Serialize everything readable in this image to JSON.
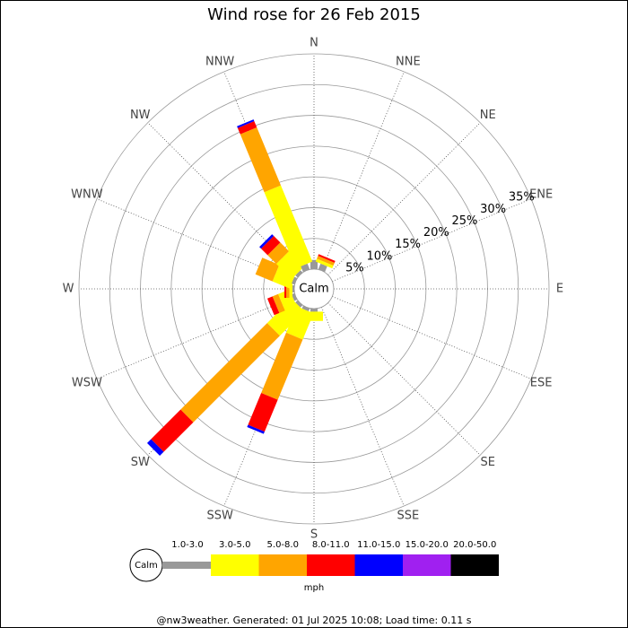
{
  "chart_data": {
    "type": "windrose",
    "title": "Wind rose for 26 Feb 2015",
    "directions": [
      "N",
      "NNE",
      "NE",
      "ENE",
      "E",
      "ESE",
      "SE",
      "SSE",
      "S",
      "SSW",
      "SW",
      "WSW",
      "W",
      "WNW",
      "NW",
      "NNW"
    ],
    "center_label": "Calm",
    "rlim": [
      0,
      35
    ],
    "rticks": [
      {
        "value": 5,
        "label": "5%"
      },
      {
        "value": 10,
        "label": "10%"
      },
      {
        "value": 15,
        "label": "15%"
      },
      {
        "value": 20,
        "label": "20%"
      },
      {
        "value": 25,
        "label": "25%"
      },
      {
        "value": 30,
        "label": "30%"
      },
      {
        "value": 35,
        "label": "35%"
      }
    ],
    "series": [
      {
        "name": "1.0-3.0",
        "color": "#999999",
        "values": [
          1.5,
          1,
          0,
          0,
          0,
          0,
          0,
          0,
          0.5,
          0.5,
          0.5,
          0.5,
          0.3,
          0.5,
          0.5,
          1
        ]
      },
      {
        "name": "3.0-5.0",
        "color": "#ffff00",
        "values": [
          0,
          0.5,
          0,
          0,
          0,
          0,
          0,
          0,
          1.5,
          4.6,
          5.6,
          2,
          0.5,
          3,
          3.5,
          13.4
        ]
      },
      {
        "name": "5.0-8.0",
        "color": "#ffa500",
        "values": [
          0,
          0.5,
          0,
          0,
          0,
          0,
          0,
          0,
          0,
          10.6,
          19.9,
          1,
          0.5,
          3,
          2,
          10.2
        ]
      },
      {
        "name": "8.0-11.0",
        "color": "#ff0000",
        "values": [
          0,
          0.3,
          0,
          0,
          0,
          0,
          0,
          0,
          0,
          5.6,
          6.8,
          0.9,
          0.3,
          0,
          1.5,
          1.1
        ]
      },
      {
        "name": "11.0-15.0",
        "color": "#0000ff",
        "values": [
          0,
          0,
          0,
          0,
          0,
          0,
          0,
          0,
          0,
          0.4,
          0.9,
          0,
          0,
          0,
          0.4,
          0.3
        ]
      },
      {
        "name": "15.0-20.0",
        "color": "#a020f0",
        "values": [
          0,
          0,
          0,
          0,
          0,
          0,
          0,
          0,
          0,
          0,
          0,
          0,
          0,
          0,
          0,
          0
        ]
      },
      {
        "name": "20.0-50.0",
        "color": "#000000",
        "values": [
          0,
          0,
          0,
          0,
          0,
          0,
          0,
          0,
          0,
          0,
          0,
          0,
          0,
          0,
          0,
          0
        ]
      }
    ],
    "unit_label": "mph",
    "footer": "@nw3weather. Generated: 01 Jul 2025 10:08; Load time: 0.11 s"
  }
}
